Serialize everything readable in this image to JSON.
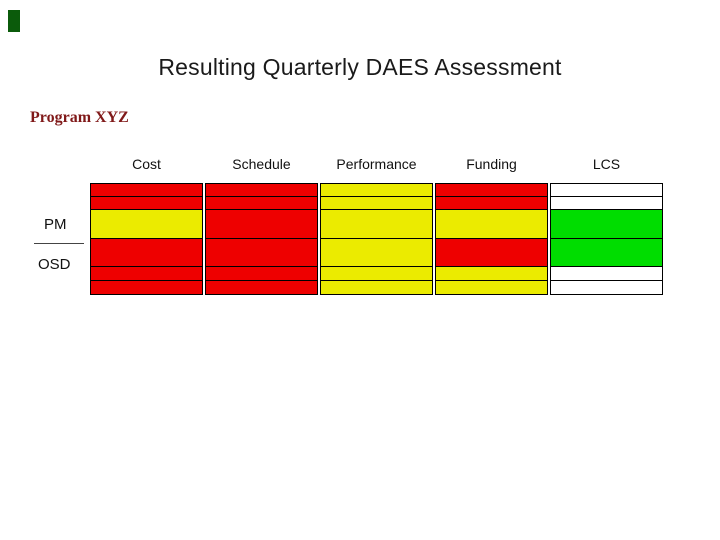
{
  "title": "Resulting Quarterly DAES Assessment",
  "program_label": "Program XYZ",
  "row_labels": {
    "pm": "PM",
    "osd": "OSD"
  },
  "colors": {
    "red": "#ee0000",
    "yellow": "#ebeb00",
    "green": "#00dd00",
    "white": "#ffffff",
    "accent_dark_green": "#0b5b0b",
    "program_maroon": "#801919"
  },
  "chart_data": {
    "type": "table",
    "title": "Resulting Quarterly DAES Assessment",
    "subtitle": "Program XYZ",
    "columns": [
      "Cost",
      "Schedule",
      "Performance",
      "Funding",
      "LCS"
    ],
    "row_groups": [
      "PM",
      "OSD"
    ],
    "legend": "cell values are status colors (red / yellow / green / white)",
    "rows": [
      {
        "group": "",
        "cells": [
          "red",
          "red",
          "yellow",
          "red",
          "white"
        ]
      },
      {
        "group": "",
        "cells": [
          "red",
          "red",
          "yellow",
          "red",
          "white"
        ]
      },
      {
        "group": "PM",
        "cells": [
          "yellow",
          "red",
          "yellow",
          "yellow",
          "green"
        ]
      },
      {
        "group": "OSD",
        "cells": [
          "red",
          "red",
          "yellow",
          "red",
          "green"
        ]
      },
      {
        "group": "",
        "cells": [
          "red",
          "red",
          "yellow",
          "yellow",
          "white"
        ]
      },
      {
        "group": "",
        "cells": [
          "red",
          "red",
          "yellow",
          "yellow",
          "white"
        ]
      }
    ]
  }
}
